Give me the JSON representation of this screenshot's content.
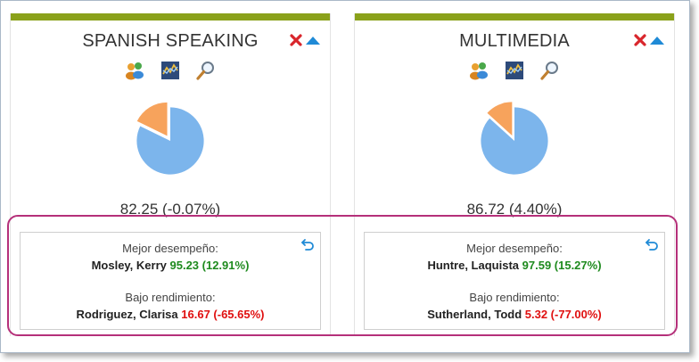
{
  "colors": {
    "accent_bar": "#8aa11a",
    "pie_main": "#7cb5ec",
    "pie_slice": "#f7a35c",
    "good": "#1e8a1e",
    "bad": "#e01010",
    "highlight": "#b5307a"
  },
  "icons": {
    "close": "x-icon",
    "collapse": "triangle-up-icon",
    "tools": [
      "people-icon",
      "chart-icon",
      "magnifier-icon"
    ],
    "reset": "undo-icon"
  },
  "cards": [
    {
      "title": "SPANISH SPEAKING",
      "score": "82.25 (-0.07%)",
      "pie_fraction": 0.8225,
      "top": {
        "label": "Mejor desempeño:",
        "name": "Mosley, Kerry",
        "value": "95.23 (12.91%)"
      },
      "low": {
        "label": "Bajo rendimiento:",
        "name": "Rodriguez, Clarisa",
        "value": "16.67 (-65.65%)"
      }
    },
    {
      "title": "MULTIMEDIA",
      "score": "86.72 (4.40%)",
      "pie_fraction": 0.8672,
      "top": {
        "label": "Mejor desempeño:",
        "name": "Huntre, Laquista",
        "value": "97.59 (15.27%)"
      },
      "low": {
        "label": "Bajo rendimiento:",
        "name": "Sutherland, Todd",
        "value": "5.32 (-77.00%)"
      }
    }
  ]
}
